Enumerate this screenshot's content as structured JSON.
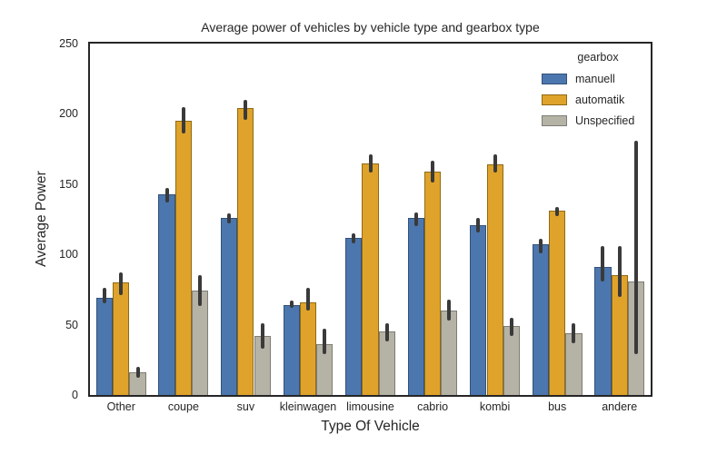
{
  "chart_data": {
    "type": "bar",
    "title": "Average power of vehicles by vehicle type and gearbox type",
    "xlabel": "Type Of Vehicle",
    "ylabel": "Average Power",
    "categories": [
      "Other",
      "coupe",
      "suv",
      "kleinwagen",
      "limousine",
      "cabrio",
      "kombi",
      "bus",
      "andere"
    ],
    "series": [
      {
        "name": "manuell",
        "color": "#4C77AE",
        "edge": "#33517A",
        "values": [
          69,
          143,
          126,
          64,
          112,
          126,
          121,
          107,
          91
        ],
        "ci_low": [
          65,
          137,
          122,
          62,
          108,
          120,
          116,
          101,
          81
        ],
        "ci_high": [
          76,
          147,
          129,
          67,
          115,
          130,
          126,
          111,
          106
        ]
      },
      {
        "name": "automatik",
        "color": "#DFA32B",
        "edge": "#8F6A14",
        "values": [
          80,
          195,
          204,
          66,
          165,
          159,
          164,
          131,
          85
        ],
        "ci_low": [
          71,
          186,
          196,
          60,
          158,
          151,
          158,
          127,
          70
        ],
        "ci_high": [
          87,
          205,
          210,
          76,
          171,
          167,
          171,
          134,
          106
        ]
      },
      {
        "name": "Unspecified",
        "color": "#B5B2A6",
        "edge": "#7E7C74",
        "values": [
          16,
          74,
          42,
          36,
          45,
          60,
          49,
          44,
          81
        ],
        "ci_low": [
          12,
          63,
          33,
          29,
          38,
          53,
          42,
          37,
          29
        ],
        "ci_high": [
          20,
          85,
          51,
          47,
          51,
          68,
          55,
          51,
          181
        ]
      }
    ],
    "ylim": [
      0,
      250
    ],
    "yticks": [
      0,
      50,
      100,
      150,
      200,
      250
    ],
    "bar_group_fraction": 0.8,
    "grid": false,
    "legend_title": "gearbox",
    "legend_position": "upper right",
    "error_bar_color": "#3A3A3A",
    "spine_color": "#262626",
    "text_color": "#262626",
    "background": "#FFFFFF"
  }
}
